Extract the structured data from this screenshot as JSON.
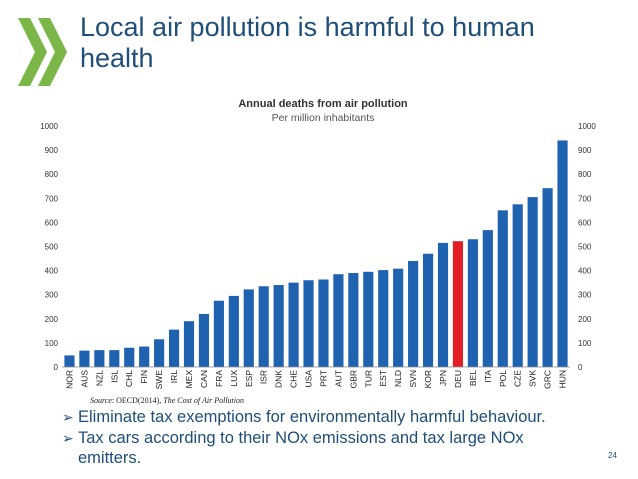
{
  "slide": {
    "title": "Local air pollution is harmful to human health",
    "page_number": "24"
  },
  "colors": {
    "logo_green": "#7ab648",
    "title_blue": "#1f4e79",
    "bar_blue": "#1f62b0",
    "bar_highlight": "#e31e24"
  },
  "source": {
    "label": "Source",
    "text": ": OECD(2014), ",
    "title": "The Cost of Air Pollution"
  },
  "bullets": [
    {
      "icon": "arrow-bullet-icon",
      "text": "Eliminate tax exemptions for environmentally harmful behaviour."
    },
    {
      "icon": "arrow-bullet-icon",
      "text": "Tax cars according to their NOx emissions and tax large NOx emitters."
    }
  ],
  "chart_data": {
    "type": "bar",
    "title": "Annual deaths from air pollution",
    "subtitle": "Per million inhabitants",
    "xlabel": "",
    "ylabel": "",
    "ylim": [
      0,
      1000
    ],
    "yticks": [
      0,
      100,
      200,
      300,
      400,
      500,
      600,
      700,
      800,
      900,
      1000
    ],
    "y_axis_both_sides": true,
    "grid": false,
    "highlight_category": "DEU",
    "categories": [
      "NOR",
      "AUS",
      "NZL",
      "ISL",
      "CHL",
      "FIN",
      "SWE",
      "IRL",
      "MEX",
      "CAN",
      "FRA",
      "LUX",
      "ESP",
      "ISR",
      "DNK",
      "CHE",
      "USA",
      "PRT",
      "AUT",
      "GBR",
      "TUR",
      "EST",
      "NLD",
      "SVN",
      "KOR",
      "JPN",
      "DEU",
      "BEL",
      "ITA",
      "POL",
      "CZE",
      "SVK",
      "GRC",
      "HUN"
    ],
    "values": [
      48,
      68,
      70,
      70,
      80,
      85,
      115,
      155,
      190,
      220,
      275,
      295,
      322,
      335,
      340,
      350,
      360,
      363,
      385,
      390,
      395,
      402,
      408,
      440,
      470,
      515,
      522,
      530,
      568,
      650,
      675,
      705,
      742,
      940
    ]
  }
}
